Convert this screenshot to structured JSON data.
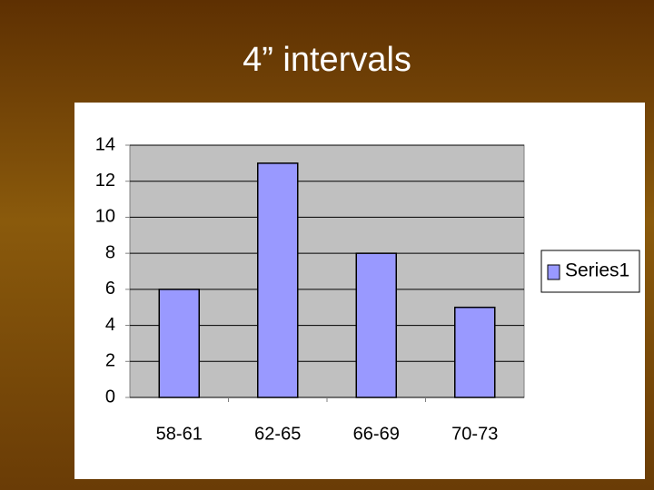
{
  "chart_data": {
    "type": "bar",
    "title": "4” intervals",
    "categories": [
      "58-61",
      "62-65",
      "66-69",
      "70-73"
    ],
    "series": [
      {
        "name": "Series1",
        "color": "#9999ff",
        "values": [
          6,
          13,
          8,
          5
        ]
      }
    ],
    "ylim": [
      0,
      14
    ],
    "yticks": [
      0,
      2,
      4,
      6,
      8,
      10,
      12,
      14
    ],
    "grid": true,
    "legend": "right"
  }
}
